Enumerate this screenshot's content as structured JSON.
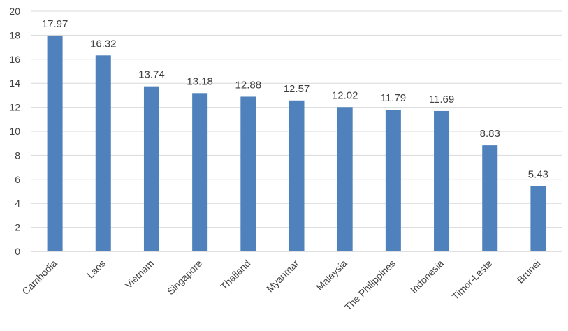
{
  "chart_data": {
    "type": "bar",
    "categories": [
      "Cambodia",
      "Laos",
      "Vietnam",
      "Singapore",
      "Thailand",
      "Myanmar",
      "Malaysia",
      "The Philippines",
      "Indonesia",
      "Timor-Leste",
      "Brunei"
    ],
    "values": [
      17.97,
      16.32,
      13.74,
      13.18,
      12.88,
      12.57,
      12.02,
      11.79,
      11.69,
      8.83,
      5.43
    ],
    "value_labels": [
      "17.97",
      "16.32",
      "13.74",
      "13.18",
      "12.88",
      "12.57",
      "12.02",
      "11.79",
      "11.69",
      "8.83",
      "5.43"
    ],
    "yticks": [
      0,
      2,
      4,
      6,
      8,
      10,
      12,
      14,
      16,
      18,
      20
    ],
    "ylim": [
      0,
      20
    ],
    "grid": true,
    "legend": "none",
    "title": "",
    "xlabel": "",
    "ylabel": "",
    "bar_color": "#4f81bd",
    "grid_color": "#d9d9d9",
    "text_color": "#404040"
  }
}
